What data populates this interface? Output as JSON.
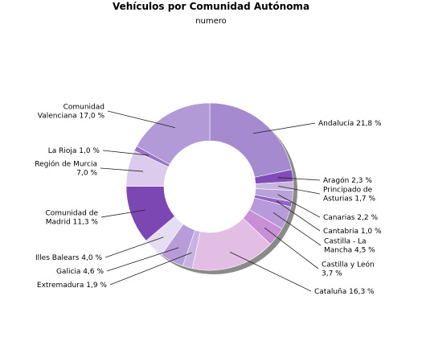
{
  "chart_data": {
    "type": "pie",
    "title": "Vehículos por Comunidad Autónoma",
    "subtitle": "numero",
    "slices": [
      {
        "label": [
          "Andalucía 21,8 %"
        ],
        "value": 21.8,
        "color": "#a58ad0"
      },
      {
        "label": [
          "Aragón 2,3 %"
        ],
        "value": 2.3,
        "color": "#7f4cb8"
      },
      {
        "label": [
          "Principado de",
          "Asturias 1,7 %"
        ],
        "value": 1.7,
        "color": "#c9b4e2"
      },
      {
        "label": [
          "Canarias 2,2 %"
        ],
        "value": 2.2,
        "color": "#b9a2da"
      },
      {
        "label": [
          "Cantabria 1,0 %"
        ],
        "value": 1.0,
        "color": "#9064c0"
      },
      {
        "label": [
          "Castilla - La",
          "Mancha 4,5 %"
        ],
        "value": 4.5,
        "color": "#b69ad9"
      },
      {
        "label": [
          "Castilla y León",
          "3,7 %"
        ],
        "value": 3.7,
        "color": "#c88ed6"
      },
      {
        "label": [
          "Cataluña 16,3 %"
        ],
        "value": 16.3,
        "color": "#e2bde4"
      },
      {
        "label": [
          "Extremadura 1,9 %"
        ],
        "value": 1.9,
        "color": "#c7b3e0"
      },
      {
        "label": [
          "Galicia 4,6 %"
        ],
        "value": 4.6,
        "color": "#b69cd8"
      },
      {
        "label": [
          "Illes Balears 4,0 %"
        ],
        "value": 4.0,
        "color": "#e6ddf3"
      },
      {
        "label": [
          "Comunidad de",
          "Madrid 11,3 %"
        ],
        "value": 11.3,
        "color": "#7d47b3"
      },
      {
        "label": [
          "Región de Murcia",
          "7,0 %"
        ],
        "value": 7.0,
        "color": "#dccbec"
      },
      {
        "label": [
          "La Rioja 1,0 %"
        ],
        "value": 1.0,
        "color": "#9a72c6"
      },
      {
        "label": [
          "Comunidad",
          "Valenciana 17,0 %"
        ],
        "value": 17.0,
        "color": "#b29ad6"
      }
    ]
  }
}
